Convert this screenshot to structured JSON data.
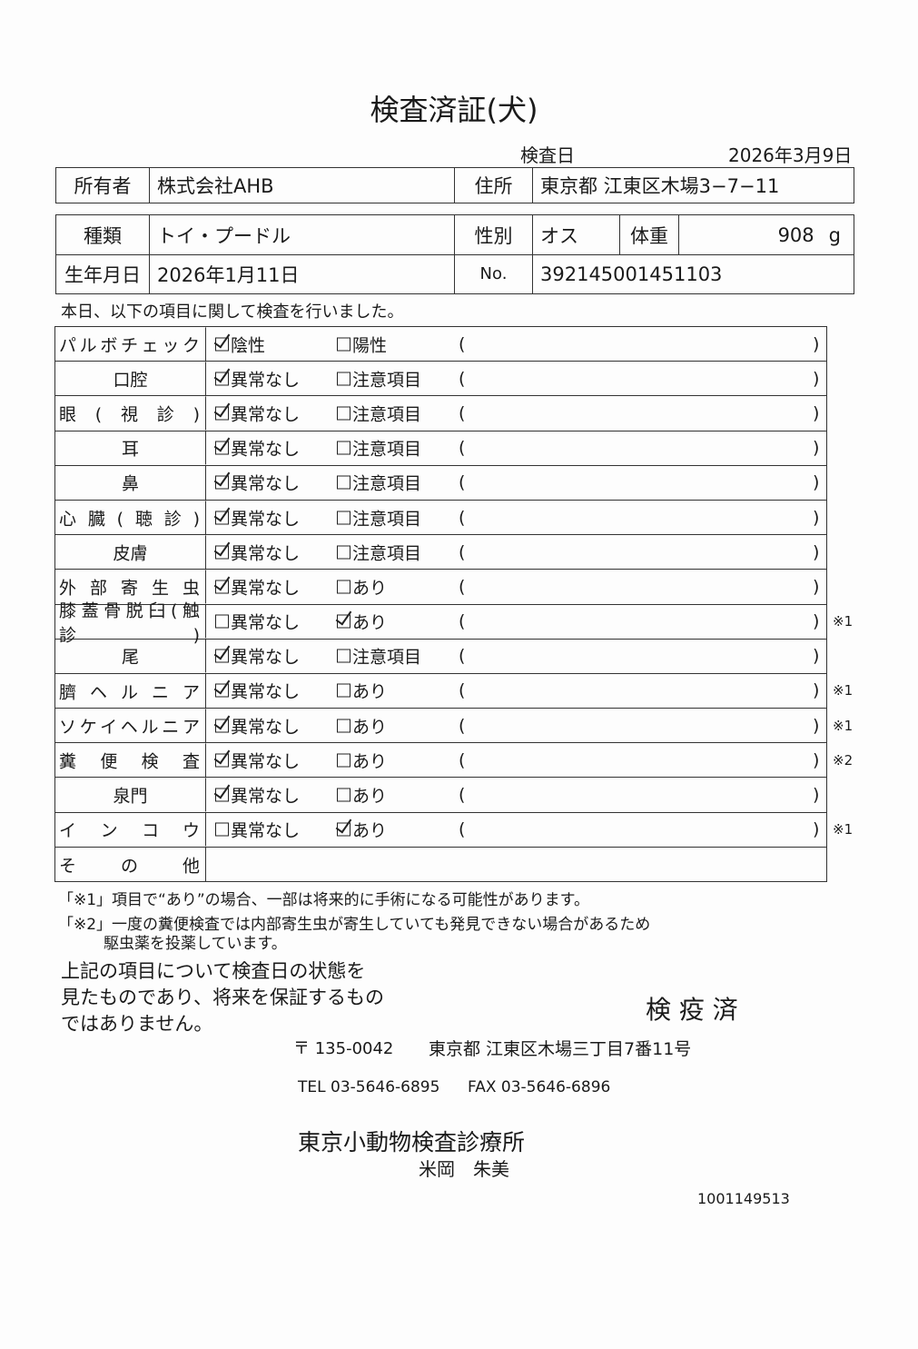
{
  "title": "検査済証(犬)",
  "exam_date_label": "検査日",
  "exam_date": "2026年3月9日",
  "owner": {
    "label": "所有者",
    "value": "株式会社AHB",
    "address_label": "住所",
    "address": "東京都 江東区木場3−7−11"
  },
  "pet": {
    "type_label": "種類",
    "type": "トイ・プードル",
    "sex_label": "性別",
    "sex": "オス",
    "weight_label": "体重",
    "weight": "908",
    "weight_unit": "g",
    "birth_label": "生年月日",
    "birth": "2026年1月11日",
    "no_label": "No.",
    "no": "392145001451103"
  },
  "intro": "本日、以下の項目に関して検査を行いました。",
  "rows": [
    {
      "label": "パルボチェック",
      "opt1": "陰性",
      "opt2": "陽性",
      "checked": 1,
      "note": ""
    },
    {
      "label": "口腔",
      "opt1": "異常なし",
      "opt2": "注意項目",
      "checked": 1,
      "note": ""
    },
    {
      "label": "眼(視診)",
      "opt1": "異常なし",
      "opt2": "注意項目",
      "checked": 1,
      "note": ""
    },
    {
      "label": "耳",
      "opt1": "異常なし",
      "opt2": "注意項目",
      "checked": 1,
      "note": ""
    },
    {
      "label": "鼻",
      "opt1": "異常なし",
      "opt2": "注意項目",
      "checked": 1,
      "note": ""
    },
    {
      "label": "心臓(聴診)",
      "opt1": "異常なし",
      "opt2": "注意項目",
      "checked": 1,
      "note": ""
    },
    {
      "label": "皮膚",
      "opt1": "異常なし",
      "opt2": "注意項目",
      "checked": 1,
      "note": ""
    },
    {
      "label": "外部寄生虫",
      "opt1": "異常なし",
      "opt2": "あり",
      "checked": 1,
      "note": ""
    },
    {
      "label": "膝蓋骨脱臼(触診)",
      "opt1": "異常なし",
      "opt2": "あり",
      "checked": 2,
      "note": "※1"
    },
    {
      "label": "尾",
      "opt1": "異常なし",
      "opt2": "注意項目",
      "checked": 1,
      "note": ""
    },
    {
      "label": "臍ヘルニア",
      "opt1": "異常なし",
      "opt2": "あり",
      "checked": 1,
      "note": "※1"
    },
    {
      "label": "ソケイヘルニア",
      "opt1": "異常なし",
      "opt2": "あり",
      "checked": 1,
      "note": "※1"
    },
    {
      "label": "糞便検査",
      "opt1": "異常なし",
      "opt2": "あり",
      "checked": 1,
      "note": "※2"
    },
    {
      "label": "泉門",
      "opt1": "異常なし",
      "opt2": "あり",
      "checked": 1,
      "note": ""
    },
    {
      "label": "インコウ",
      "opt1": "異常なし",
      "opt2": "あり",
      "checked": 2,
      "note": "※1"
    }
  ],
  "other_label": "その他",
  "paren_open": "(",
  "paren_close": ")",
  "notes": {
    "n1": "「※1」項目で“あり”の場合、一部は将来的に手術になる可能性があります。",
    "n2a": "「※2」一度の糞便検査では内部寄生虫が寄生していても発見できない場合があるため",
    "n2b": "駆虫薬を投薬しています。"
  },
  "disclaimer": [
    "上記の項目について検査日の状態を",
    "見たものであり、将来を保証するもの",
    "ではありません。"
  ],
  "stamp": "検 疫 済",
  "clinic": {
    "postal": "〒 135-0042",
    "address": "東京都 江東区木場三丁目7番11号",
    "tel": "TEL 03-5646-6895",
    "fax": "FAX 03-5646-6896",
    "name": "東京小動物検査診療所",
    "doctor": "米岡　朱美"
  },
  "serial": "1001149513"
}
